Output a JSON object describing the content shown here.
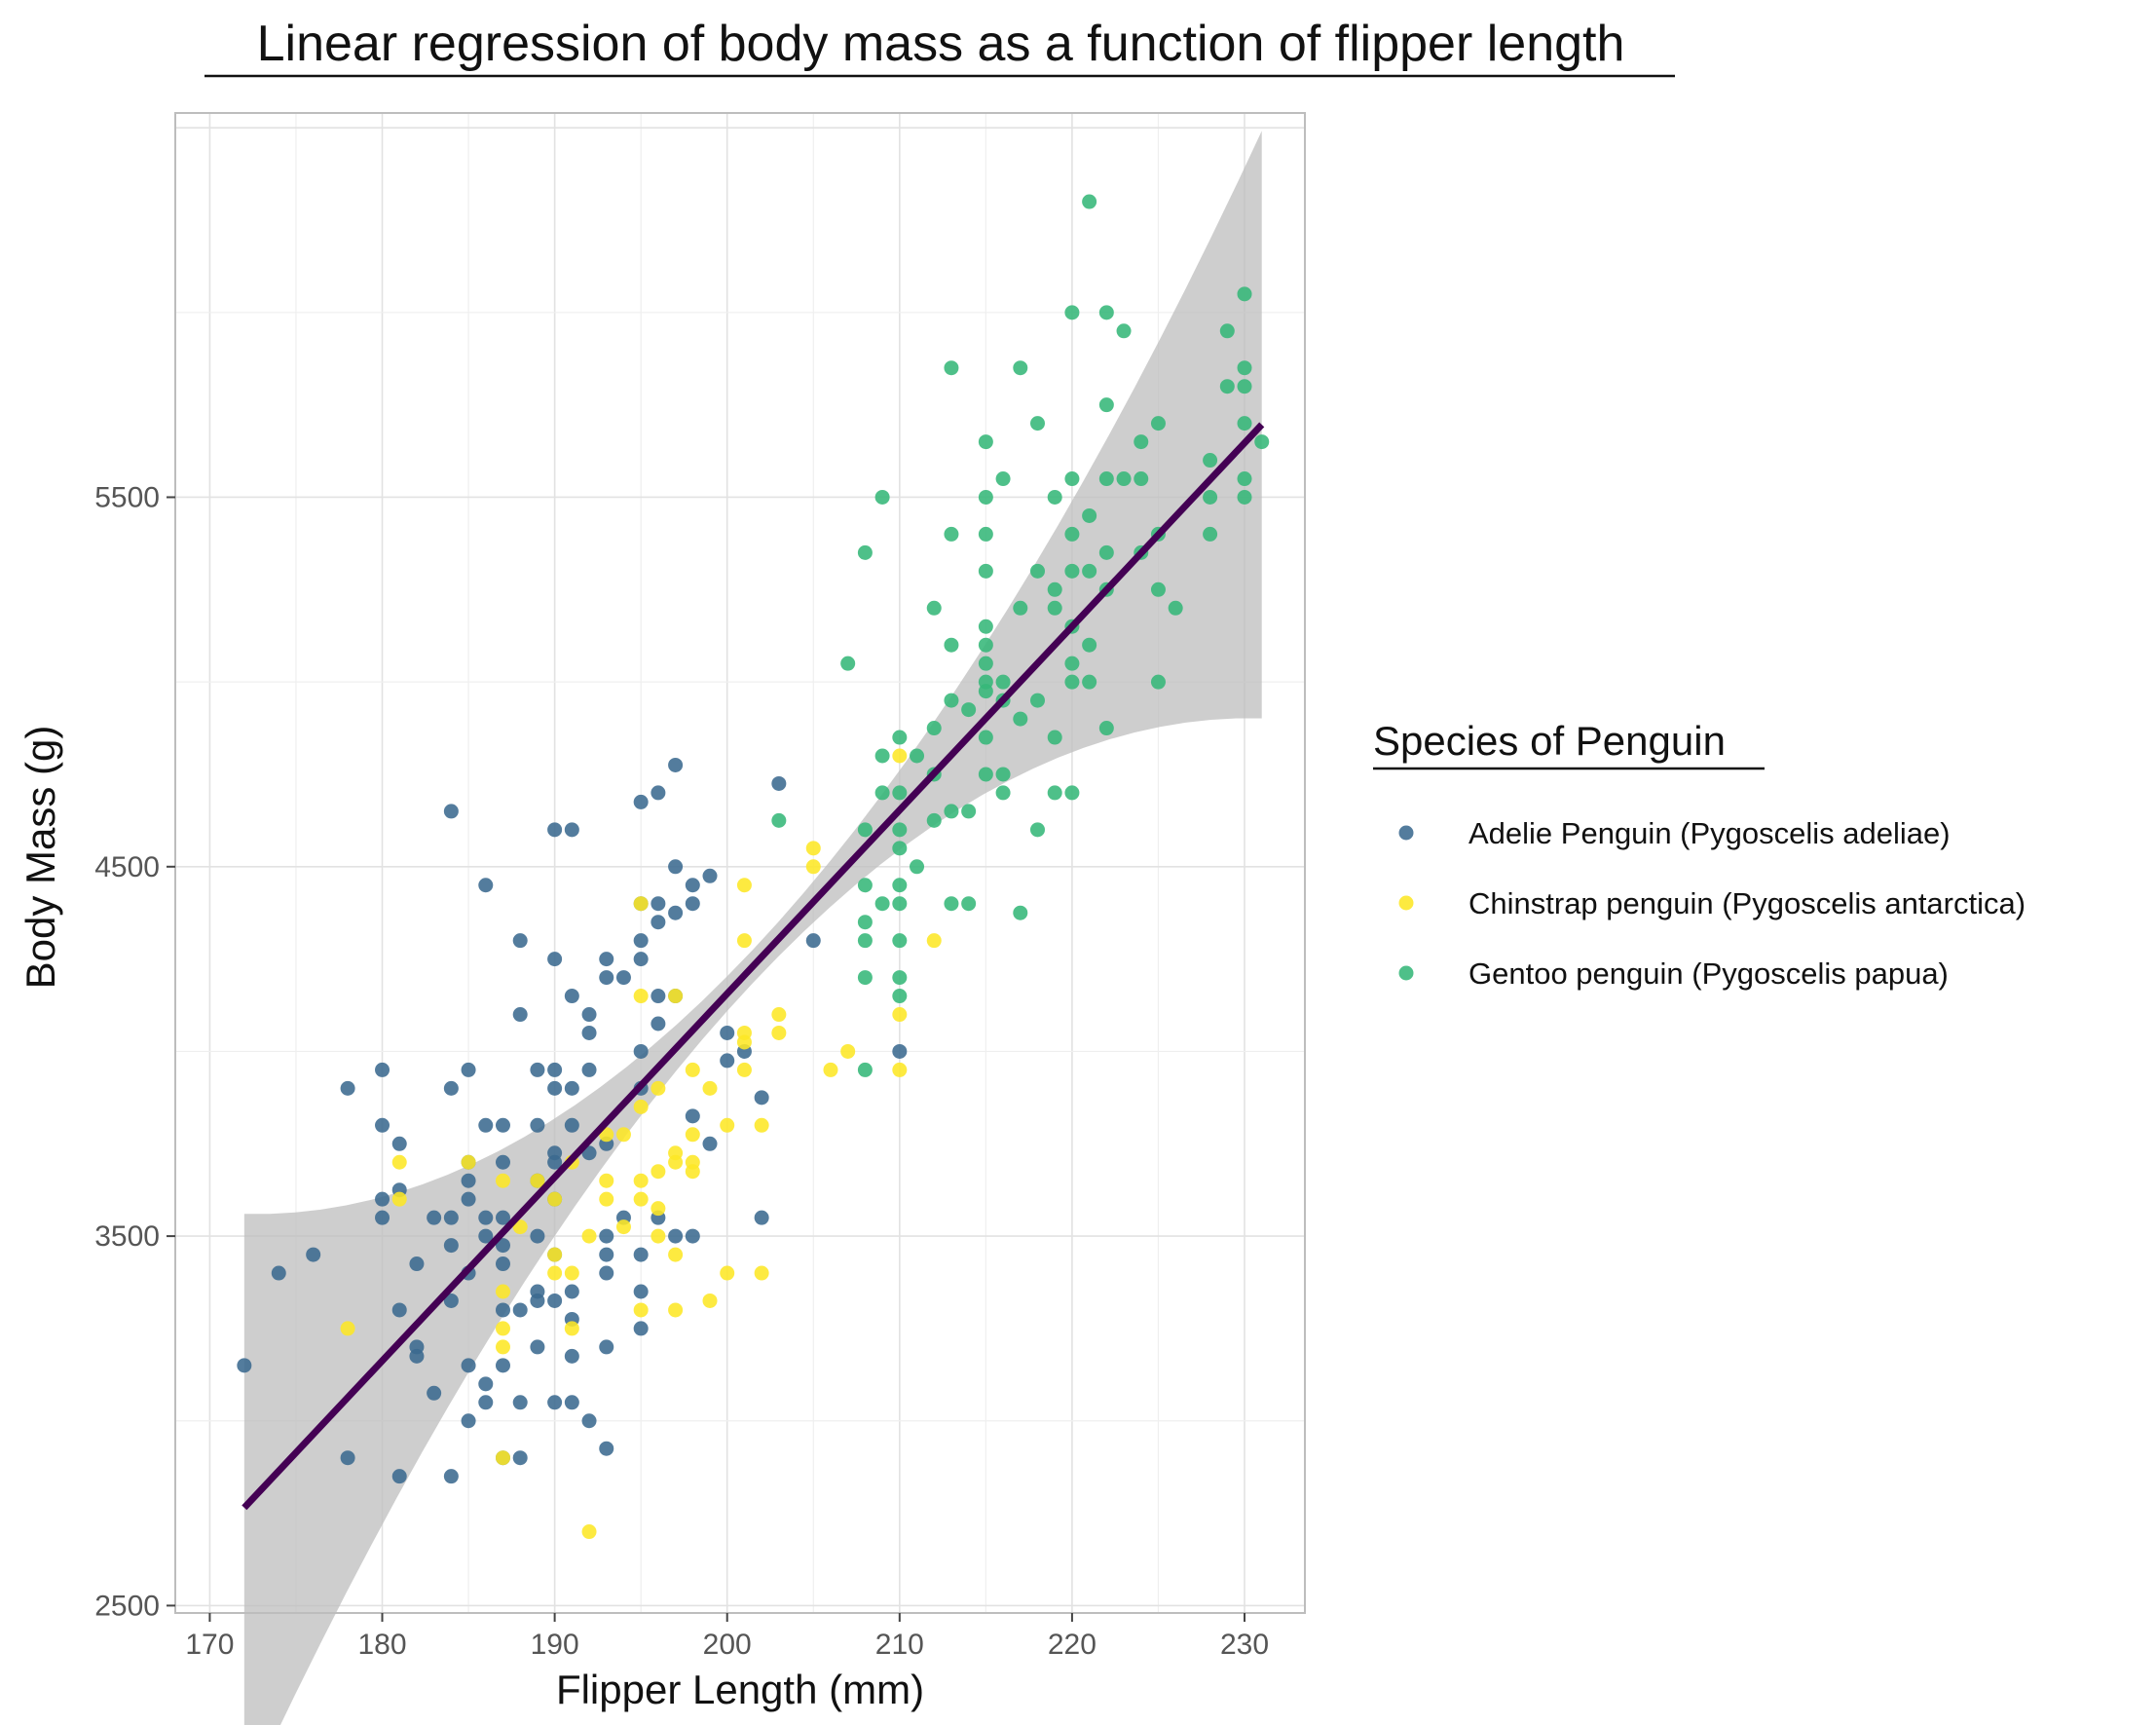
{
  "chart_data": {
    "type": "scatter",
    "title": "Linear regression of body mass as a function of flipper length",
    "xlabel": "Flipper Length (mm)",
    "ylabel": "Body Mass (g)",
    "xlim": [
      168,
      233.5
    ],
    "ylim": [
      2480,
      6540
    ],
    "x_ticks": [
      "170",
      "180",
      "190",
      "200",
      "210",
      "220",
      "230"
    ],
    "y_ticks": [
      "2500",
      "3500",
      "4500",
      "5500"
    ],
    "grid": true,
    "legend": {
      "title": "Species of Penguin",
      "position": "right"
    },
    "series": [
      {
        "name": "Adelie Penguin (Pygoscelis adeliae)",
        "color": "#3b6a8f",
        "points": [
          [
            172,
            3150
          ],
          [
            174,
            3400
          ],
          [
            176,
            3450
          ],
          [
            178,
            3900
          ],
          [
            178,
            2900
          ],
          [
            180,
            3950
          ],
          [
            180,
            3800
          ],
          [
            180,
            3550
          ],
          [
            180,
            3600
          ],
          [
            181,
            3750
          ],
          [
            181,
            3625
          ],
          [
            181,
            3300
          ],
          [
            181,
            2850
          ],
          [
            182,
            3425
          ],
          [
            182,
            3175
          ],
          [
            182,
            3200
          ],
          [
            183,
            3550
          ],
          [
            183,
            3075
          ],
          [
            184,
            4650
          ],
          [
            184,
            3900
          ],
          [
            184,
            3550
          ],
          [
            184,
            3475
          ],
          [
            184,
            3325
          ],
          [
            184,
            2850
          ],
          [
            185,
            3950
          ],
          [
            185,
            3700
          ],
          [
            185,
            3600
          ],
          [
            185,
            3400
          ],
          [
            185,
            3650
          ],
          [
            185,
            3150
          ],
          [
            185,
            3000
          ],
          [
            186,
            4450
          ],
          [
            186,
            3800
          ],
          [
            186,
            3550
          ],
          [
            186,
            3500
          ],
          [
            186,
            3100
          ],
          [
            186,
            3050
          ],
          [
            187,
            3800
          ],
          [
            187,
            3700
          ],
          [
            187,
            3550
          ],
          [
            187,
            3475
          ],
          [
            187,
            3425
          ],
          [
            187,
            3300
          ],
          [
            187,
            3150
          ],
          [
            187,
            2900
          ],
          [
            188,
            4300
          ],
          [
            188,
            4100
          ],
          [
            188,
            3300
          ],
          [
            188,
            3050
          ],
          [
            188,
            2900
          ],
          [
            189,
            3950
          ],
          [
            189,
            3800
          ],
          [
            189,
            3650
          ],
          [
            189,
            3500
          ],
          [
            189,
            3350
          ],
          [
            189,
            3325
          ],
          [
            189,
            3200
          ],
          [
            190,
            4600
          ],
          [
            190,
            4250
          ],
          [
            190,
            3950
          ],
          [
            190,
            3900
          ],
          [
            190,
            3725
          ],
          [
            190,
            3700
          ],
          [
            190,
            3600
          ],
          [
            190,
            3450
          ],
          [
            190,
            3325
          ],
          [
            190,
            3050
          ],
          [
            191,
            4600
          ],
          [
            191,
            4150
          ],
          [
            191,
            3900
          ],
          [
            191,
            3800
          ],
          [
            191,
            3350
          ],
          [
            191,
            3275
          ],
          [
            191,
            3175
          ],
          [
            191,
            3050
          ],
          [
            192,
            4100
          ],
          [
            192,
            4050
          ],
          [
            192,
            3950
          ],
          [
            192,
            3725
          ],
          [
            192,
            3000
          ],
          [
            193,
            4250
          ],
          [
            193,
            4200
          ],
          [
            193,
            3750
          ],
          [
            193,
            3500
          ],
          [
            193,
            3450
          ],
          [
            193,
            3400
          ],
          [
            193,
            3200
          ],
          [
            193,
            2925
          ],
          [
            194,
            4200
          ],
          [
            194,
            3550
          ],
          [
            195,
            4675
          ],
          [
            195,
            4400
          ],
          [
            195,
            4300
          ],
          [
            195,
            4250
          ],
          [
            195,
            4000
          ],
          [
            195,
            3900
          ],
          [
            195,
            3450
          ],
          [
            195,
            3350
          ],
          [
            195,
            3250
          ],
          [
            196,
            4700
          ],
          [
            196,
            4400
          ],
          [
            196,
            4350
          ],
          [
            196,
            4150
          ],
          [
            196,
            4075
          ],
          [
            196,
            3550
          ],
          [
            197,
            4775
          ],
          [
            197,
            4500
          ],
          [
            197,
            4375
          ],
          [
            197,
            4150
          ],
          [
            197,
            3500
          ],
          [
            198,
            4450
          ],
          [
            198,
            4400
          ],
          [
            198,
            3825
          ],
          [
            198,
            3500
          ],
          [
            199,
            4475
          ],
          [
            199,
            3750
          ],
          [
            200,
            4050
          ],
          [
            200,
            3975
          ],
          [
            201,
            4000
          ],
          [
            202,
            3875
          ],
          [
            202,
            3550
          ],
          [
            203,
            4725
          ],
          [
            205,
            4300
          ],
          [
            210,
            4000
          ]
        ]
      },
      {
        "name": "Chinstrap penguin (Pygoscelis antarctica)",
        "color": "#fde725",
        "points": [
          [
            178,
            3250
          ],
          [
            181,
            3700
          ],
          [
            181,
            3600
          ],
          [
            185,
            3700
          ],
          [
            187,
            3650
          ],
          [
            187,
            3350
          ],
          [
            187,
            3250
          ],
          [
            187,
            3200
          ],
          [
            187,
            2900
          ],
          [
            188,
            3525
          ],
          [
            189,
            3650
          ],
          [
            190,
            3600
          ],
          [
            190,
            3400
          ],
          [
            190,
            3450
          ],
          [
            191,
            3700
          ],
          [
            191,
            3400
          ],
          [
            191,
            3250
          ],
          [
            192,
            3500
          ],
          [
            192,
            2700
          ],
          [
            193,
            3775
          ],
          [
            193,
            3650
          ],
          [
            193,
            3600
          ],
          [
            194,
            3775
          ],
          [
            194,
            3525
          ],
          [
            195,
            4400
          ],
          [
            195,
            4150
          ],
          [
            195,
            3850
          ],
          [
            195,
            3650
          ],
          [
            195,
            3600
          ],
          [
            195,
            3300
          ],
          [
            196,
            3900
          ],
          [
            196,
            3675
          ],
          [
            196,
            3575
          ],
          [
            196,
            3500
          ],
          [
            197,
            4150
          ],
          [
            197,
            3725
          ],
          [
            197,
            3700
          ],
          [
            197,
            3450
          ],
          [
            197,
            3300
          ],
          [
            198,
            3950
          ],
          [
            198,
            3775
          ],
          [
            198,
            3700
          ],
          [
            198,
            3675
          ],
          [
            199,
            3900
          ],
          [
            199,
            3325
          ],
          [
            200,
            3800
          ],
          [
            200,
            3400
          ],
          [
            201,
            4450
          ],
          [
            201,
            4300
          ],
          [
            201,
            4050
          ],
          [
            201,
            4025
          ],
          [
            201,
            3950
          ],
          [
            202,
            3800
          ],
          [
            202,
            3400
          ],
          [
            203,
            4100
          ],
          [
            203,
            4050
          ],
          [
            205,
            4550
          ],
          [
            205,
            4500
          ],
          [
            206,
            3950
          ],
          [
            207,
            4000
          ],
          [
            210,
            4800
          ],
          [
            210,
            4100
          ],
          [
            210,
            3950
          ],
          [
            212,
            4300
          ]
        ]
      },
      {
        "name": "Gentoo penguin (Pygoscelis papua)",
        "color": "#35b779",
        "points": [
          [
            203,
            4625
          ],
          [
            207,
            5050
          ],
          [
            208,
            5350
          ],
          [
            208,
            4600
          ],
          [
            208,
            4450
          ],
          [
            208,
            4350
          ],
          [
            208,
            4300
          ],
          [
            208,
            4200
          ],
          [
            208,
            3950
          ],
          [
            209,
            5500
          ],
          [
            209,
            4700
          ],
          [
            209,
            4400
          ],
          [
            209,
            4800
          ],
          [
            210,
            4850
          ],
          [
            210,
            4700
          ],
          [
            210,
            4600
          ],
          [
            210,
            4550
          ],
          [
            210,
            4450
          ],
          [
            210,
            4400
          ],
          [
            210,
            4300
          ],
          [
            210,
            4200
          ],
          [
            210,
            4150
          ],
          [
            211,
            4500
          ],
          [
            211,
            4800
          ],
          [
            212,
            5200
          ],
          [
            212,
            4875
          ],
          [
            212,
            4750
          ],
          [
            212,
            4625
          ],
          [
            213,
            5850
          ],
          [
            213,
            5400
          ],
          [
            213,
            5100
          ],
          [
            213,
            4950
          ],
          [
            213,
            4650
          ],
          [
            213,
            4400
          ],
          [
            214,
            4925
          ],
          [
            214,
            4650
          ],
          [
            214,
            4400
          ],
          [
            215,
            5650
          ],
          [
            215,
            5500
          ],
          [
            215,
            5400
          ],
          [
            215,
            5300
          ],
          [
            215,
            5150
          ],
          [
            215,
            5100
          ],
          [
            215,
            5050
          ],
          [
            215,
            5000
          ],
          [
            215,
            4975
          ],
          [
            215,
            4850
          ],
          [
            215,
            4750
          ],
          [
            216,
            5550
          ],
          [
            216,
            5000
          ],
          [
            216,
            4950
          ],
          [
            216,
            4750
          ],
          [
            216,
            4700
          ],
          [
            217,
            5850
          ],
          [
            217,
            5200
          ],
          [
            217,
            4900
          ],
          [
            217,
            4375
          ],
          [
            218,
            5700
          ],
          [
            218,
            5300
          ],
          [
            218,
            4950
          ],
          [
            218,
            4600
          ],
          [
            219,
            5500
          ],
          [
            219,
            5250
          ],
          [
            219,
            5200
          ],
          [
            219,
            4850
          ],
          [
            219,
            4700
          ],
          [
            220,
            6000
          ],
          [
            220,
            5550
          ],
          [
            220,
            5400
          ],
          [
            220,
            5300
          ],
          [
            220,
            5150
          ],
          [
            220,
            5050
          ],
          [
            220,
            5000
          ],
          [
            220,
            4700
          ],
          [
            221,
            6300
          ],
          [
            221,
            5450
          ],
          [
            221,
            5300
          ],
          [
            221,
            5100
          ],
          [
            221,
            5000
          ],
          [
            222,
            6000
          ],
          [
            222,
            5750
          ],
          [
            222,
            5550
          ],
          [
            222,
            5350
          ],
          [
            222,
            5250
          ],
          [
            222,
            4875
          ],
          [
            223,
            5950
          ],
          [
            223,
            5550
          ],
          [
            224,
            5650
          ],
          [
            224,
            5550
          ],
          [
            224,
            5350
          ],
          [
            225,
            5700
          ],
          [
            225,
            5400
          ],
          [
            225,
            5250
          ],
          [
            225,
            5000
          ],
          [
            226,
            5200
          ],
          [
            228,
            5600
          ],
          [
            228,
            5500
          ],
          [
            228,
            5400
          ],
          [
            229,
            5950
          ],
          [
            229,
            5800
          ],
          [
            230,
            6050
          ],
          [
            230,
            5850
          ],
          [
            230,
            5800
          ],
          [
            230,
            5700
          ],
          [
            230,
            5550
          ],
          [
            230,
            5500
          ],
          [
            231,
            5650
          ]
        ]
      }
    ],
    "regression": {
      "color": "#440154",
      "x_range": [
        172,
        231
      ],
      "intercept": -5780.83,
      "slope": 49.6856,
      "band_color": "#bdbdbd"
    }
  }
}
